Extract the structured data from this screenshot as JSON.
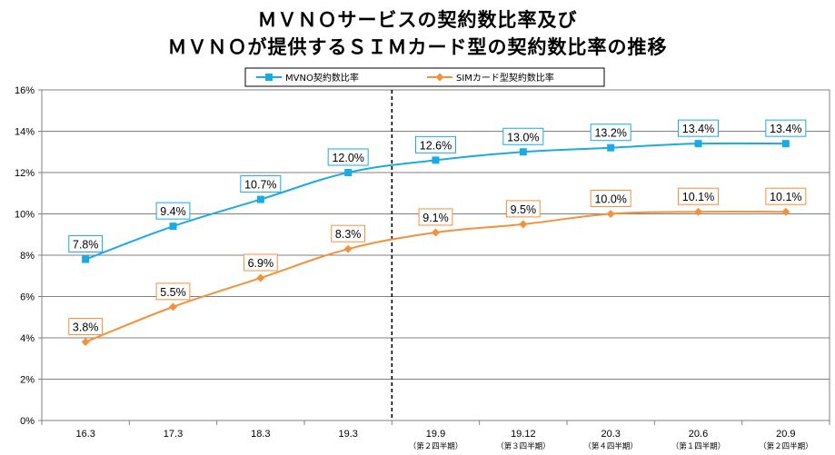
{
  "title_line1": "ＭＶＮＯサービスの契約数比率及び",
  "title_line2": "ＭＶＮＯが提供するＳＩＭカード型の契約数比率の推移",
  "chart_data": {
    "type": "line",
    "title": "ＭＶＮＯサービスの契約数比率及び ＭＶＮＯが提供するＳＩＭカード型の契約数比率の推移",
    "categories": [
      "16.3",
      "17.3",
      "18.3",
      "19.3",
      "19.9",
      "19.12",
      "20.3",
      "20.6",
      "20.9"
    ],
    "category_sublabels": [
      "",
      "",
      "",
      "",
      "（第２四半期）",
      "（第３四半期）",
      "（第４四半期）",
      "（第１四半期）",
      "（第２四半期）"
    ],
    "yticks": [
      "0%",
      "2%",
      "4%",
      "6%",
      "8%",
      "10%",
      "12%",
      "14%",
      "16%"
    ],
    "ylim": [
      0,
      16
    ],
    "grid": true,
    "legend_position": "top-center",
    "divider_after_category": "19.3",
    "series": [
      {
        "name": "MVNO契約数比率",
        "color": "#1AABE3",
        "marker": "square",
        "values": [
          7.8,
          9.4,
          10.7,
          12.0,
          12.6,
          13.0,
          13.2,
          13.4,
          13.4
        ],
        "labels": [
          "7.8%",
          "9.4%",
          "10.7%",
          "12.0%",
          "12.6%",
          "13.0%",
          "13.2%",
          "13.4%",
          "13.4%"
        ]
      },
      {
        "name": "SIMカード型契約数比率",
        "color": "#F4913B",
        "marker": "diamond",
        "values": [
          3.8,
          5.5,
          6.9,
          8.3,
          9.1,
          9.5,
          10.0,
          10.1,
          10.1
        ],
        "labels": [
          "3.8%",
          "5.5%",
          "6.9%",
          "8.3%",
          "9.1%",
          "9.5%",
          "10.0%",
          "10.1%",
          "10.1%"
        ]
      }
    ]
  }
}
